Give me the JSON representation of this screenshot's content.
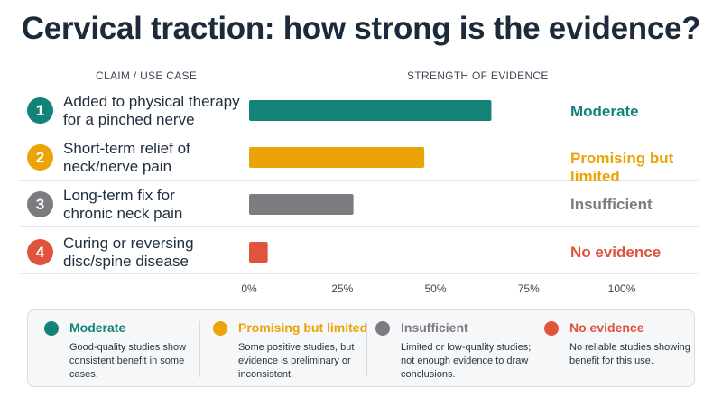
{
  "title": "Cervical traction: how strong is the evidence?",
  "headers": {
    "claims": "CLAIM / USE CASE",
    "strength": "STRENGTH OF EVIDENCE"
  },
  "rows": [
    {
      "num": "1",
      "claim": "Added to physical therapy\nfor a pinched nerve",
      "label": "Moderate",
      "color": "#138277"
    },
    {
      "num": "2",
      "claim": "Short-term relief of\nneck/nerve pain",
      "label": "Promising but limited",
      "color": "#eba308"
    },
    {
      "num": "3",
      "claim": "Long-term fix for\nchronic neck pain",
      "label": "Insufficient",
      "color": "#7a7c80"
    },
    {
      "num": "4",
      "claim": "Curing or reversing\ndisc/spine disease",
      "label": "No evidence",
      "color": "#e0533d"
    }
  ],
  "chart_data": {
    "type": "bar",
    "orientation": "horizontal",
    "categories": [
      "Added to physical therapy for a pinched nerve",
      "Short-term relief of neck/nerve pain",
      "Long-term fix for chronic neck pain",
      "Curing or reversing disc/spine disease"
    ],
    "values": [
      65,
      47,
      28,
      5
    ],
    "xlim": [
      0,
      100
    ],
    "xticks": [
      "0%",
      "25%",
      "50%",
      "75%",
      "100%"
    ],
    "xtick_values": [
      0,
      25,
      50,
      75,
      100
    ],
    "grid": false
  },
  "legend": [
    {
      "title": "Moderate",
      "desc": "Good-quality studies show consistent benefit in some cases.",
      "color": "#138277"
    },
    {
      "title": "Promising but limited",
      "desc": "Some positive studies, but evidence is preliminary or inconsistent.",
      "color": "#eba308"
    },
    {
      "title": "Insufficient",
      "desc": "Limited or low-quality studies; not enough evidence to draw conclusions.",
      "color": "#7a7c80"
    },
    {
      "title": "No evidence",
      "desc": "No reliable studies showing benefit for this use.",
      "color": "#e0533d"
    }
  ]
}
